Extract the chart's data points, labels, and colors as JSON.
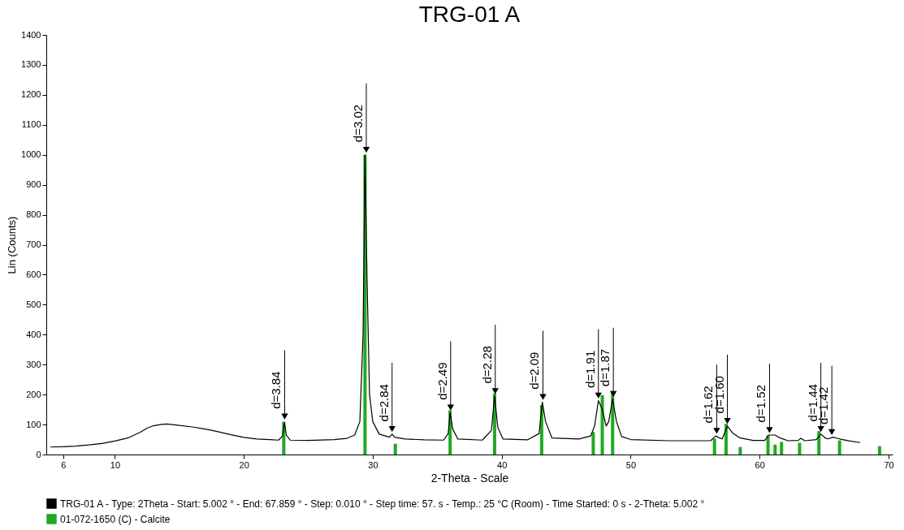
{
  "chart_data": {
    "type": "line",
    "title": "TRG-01 A",
    "xlabel": "2-Theta - Scale",
    "ylabel": "Lin (Counts)",
    "xlim": [
      5,
      70
    ],
    "xticks": [
      6,
      10,
      20,
      30,
      40,
      50,
      60,
      70
    ],
    "ylim": [
      0,
      1400
    ],
    "yticks": [
      0,
      100,
      200,
      300,
      400,
      500,
      600,
      700,
      800,
      900,
      1000,
      1100,
      1200,
      1300,
      1400
    ],
    "grid": false,
    "legend": "bottom left",
    "series": [
      {
        "name": "TRG-01 A - Type: 2Theta - Start: 5.002 ° - End: 67.859 ° - Step: 0.010 ° - Step time: 57. s - Temp.: 25 °C (Room) - Time Started: 0 s - 2-Theta: 5.002 °",
        "color": "#000000",
        "x": [
          5.0,
          6,
          7,
          8,
          9,
          10,
          11,
          12,
          12.5,
          13,
          13.5,
          14,
          14.5,
          15,
          16,
          17,
          18,
          19,
          20,
          21,
          22,
          22.7,
          23.0,
          23.15,
          23.3,
          23.6,
          25,
          27,
          28,
          28.6,
          29.0,
          29.25,
          29.4,
          29.55,
          29.75,
          30.0,
          30.5,
          31.3,
          31.5,
          31.7,
          32.5,
          34,
          35.5,
          35.85,
          36.0,
          36.2,
          36.6,
          38.5,
          39.2,
          39.45,
          39.7,
          40.1,
          42,
          42.9,
          43.15,
          43.4,
          43.9,
          46,
          46.9,
          47.2,
          47.5,
          47.8,
          48.1,
          48.3,
          48.6,
          48.9,
          49.3,
          50,
          53,
          56.2,
          56.6,
          56.9,
          57.1,
          57.5,
          57.9,
          58.5,
          59.5,
          60.4,
          60.7,
          61.2,
          61.6,
          62.2,
          63.0,
          63.2,
          63.5,
          64.4,
          64.75,
          65.1,
          65.3,
          65.7,
          66.2,
          67,
          67.8
        ],
        "values": [
          25,
          26,
          28,
          32,
          37,
          45,
          55,
          75,
          88,
          96,
          100,
          102,
          100,
          97,
          92,
          85,
          76,
          66,
          57,
          52,
          50,
          48,
          62,
          108,
          65,
          48,
          47,
          50,
          54,
          65,
          110,
          400,
          1000,
          600,
          200,
          110,
          68,
          58,
          68,
          58,
          52,
          49,
          48,
          70,
          140,
          85,
          52,
          48,
          80,
          195,
          90,
          52,
          49,
          70,
          175,
          110,
          55,
          52,
          62,
          95,
          180,
          150,
          95,
          110,
          185,
          110,
          60,
          50,
          46,
          46,
          62,
          55,
          52,
          95,
          72,
          55,
          47,
          47,
          65,
          65,
          55,
          46,
          47,
          54,
          46,
          50,
          68,
          55,
          52,
          58,
          52,
          45,
          40
        ]
      },
      {
        "name": "01-072-1650 (C) - Calcite",
        "type": "bar",
        "color": "#22a822",
        "x": [
          23.1,
          29.4,
          31.75,
          36.0,
          39.45,
          43.1,
          47.1,
          47.8,
          48.6,
          56.5,
          57.4,
          58.5,
          60.65,
          61.2,
          61.7,
          63.1,
          64.6,
          66.2,
          69.3
        ],
        "values": [
          109,
          1000,
          36,
          148,
          204,
          165,
          75,
          198,
          212,
          53,
          103,
          25,
          64,
          33,
          42,
          39,
          78,
          47,
          28
        ]
      }
    ],
    "annotations": [
      {
        "text": "d=3.84",
        "x": 23.17,
        "y": 110
      },
      {
        "text": "d=3.02",
        "x": 29.5,
        "y": 1000
      },
      {
        "text": "d=2.84",
        "x": 31.5,
        "y": 68
      },
      {
        "text": "d=2.49",
        "x": 36.04,
        "y": 140
      },
      {
        "text": "d=2.28",
        "x": 39.5,
        "y": 195
      },
      {
        "text": "d=2.09",
        "x": 43.2,
        "y": 175
      },
      {
        "text": "d=1.91",
        "x": 47.5,
        "y": 180
      },
      {
        "text": "d=1.87",
        "x": 48.66,
        "y": 185
      },
      {
        "text": "d=1.62",
        "x": 56.67,
        "y": 62
      },
      {
        "text": "d=1.60",
        "x": 57.5,
        "y": 95
      },
      {
        "text": "d=1.52",
        "x": 60.77,
        "y": 65
      },
      {
        "text": "d=1.44",
        "x": 64.75,
        "y": 68
      },
      {
        "text": "d=1.42",
        "x": 65.6,
        "y": 58
      }
    ]
  }
}
